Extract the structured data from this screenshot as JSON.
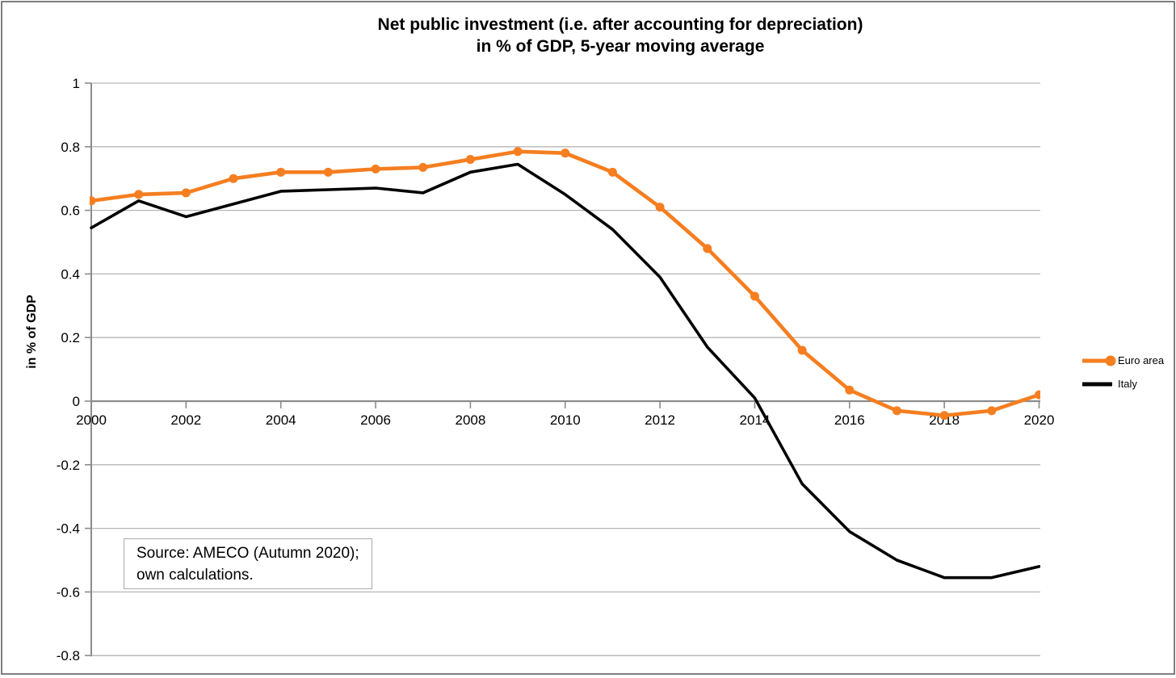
{
  "title": {
    "line1": "Net public investment (i.e. after accounting for depreciation)",
    "line2": "in % of GDP, 5-year moving average"
  },
  "y_axis_title": "in % of GDP",
  "source_box": {
    "line1": "Source: AMECO (Autumn 2020);",
    "line2": "own calculations."
  },
  "legend": {
    "items": [
      {
        "label": "Euro area"
      },
      {
        "label": "Italy"
      }
    ]
  },
  "colors": {
    "euro_area": "#F57E20",
    "italy": "#000000",
    "gridline": "#b7b7b7",
    "axis": "#8c8c8c",
    "frame_border": "#7f7f7f"
  },
  "chart_data": {
    "type": "line",
    "title": "Net public investment (i.e. after accounting for depreciation) in % of GDP, 5-year moving average",
    "xlabel": "",
    "ylabel": "in % of GDP",
    "x": [
      2000,
      2001,
      2002,
      2003,
      2004,
      2005,
      2006,
      2007,
      2008,
      2009,
      2010,
      2011,
      2012,
      2013,
      2014,
      2015,
      2016,
      2017,
      2018,
      2019,
      2020
    ],
    "series": [
      {
        "name": "Euro area",
        "color": "#F57E20",
        "marker": "circle",
        "values": [
          0.63,
          0.65,
          0.655,
          0.7,
          0.72,
          0.72,
          0.73,
          0.735,
          0.76,
          0.785,
          0.78,
          0.72,
          0.61,
          0.48,
          0.33,
          0.16,
          0.035,
          -0.03,
          -0.045,
          -0.03,
          0.02
        ]
      },
      {
        "name": "Italy",
        "color": "#000000",
        "marker": "none",
        "values": [
          0.545,
          0.63,
          0.58,
          0.62,
          0.66,
          0.665,
          0.67,
          0.655,
          0.72,
          0.745,
          0.65,
          0.54,
          0.39,
          0.17,
          0.01,
          -0.26,
          -0.41,
          -0.5,
          -0.555,
          -0.555,
          -0.52
        ]
      }
    ],
    "ylim": [
      -0.8,
      1
    ],
    "yticks": [
      1,
      0.8,
      0.6,
      0.4,
      0.2,
      0,
      -0.2,
      -0.4,
      -0.6,
      -0.8
    ],
    "xticks": [
      2000,
      2002,
      2004,
      2006,
      2008,
      2010,
      2012,
      2014,
      2016,
      2018,
      2020
    ],
    "grid": true,
    "legend_position": "right"
  }
}
